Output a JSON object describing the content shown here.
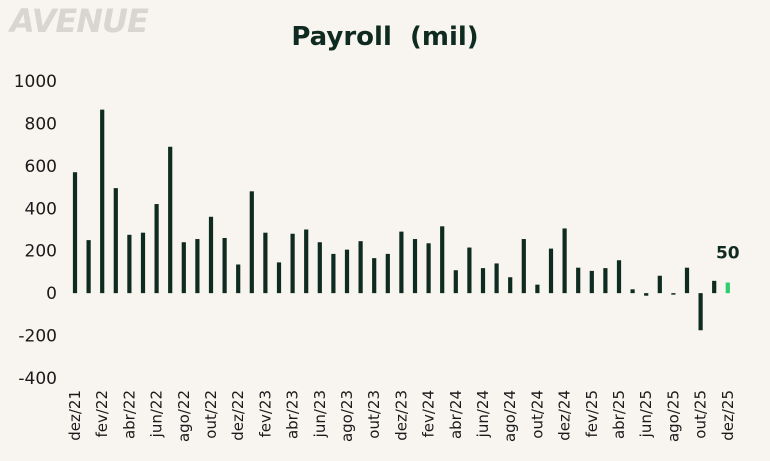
{
  "logo": {
    "text": "AVENUE"
  },
  "chart_data": {
    "type": "bar",
    "title": "Payroll  (mil)",
    "xlabel": "",
    "ylabel": "",
    "ylim": [
      -400,
      1000
    ],
    "yticks": [
      1000,
      800,
      600,
      400,
      200,
      0,
      -200,
      -400
    ],
    "grid": false,
    "categories": [
      "dez/21",
      "jan/22",
      "fev/22",
      "mar/22",
      "abr/22",
      "mai/22",
      "jun/22",
      "jul/22",
      "ago/22",
      "set/22",
      "out/22",
      "nov/22",
      "dez/22",
      "jan/23",
      "fev/23",
      "mar/23",
      "abr/23",
      "mai/23",
      "jun/23",
      "jul/23",
      "ago/23",
      "set/23",
      "out/23",
      "nov/23",
      "dez/23",
      "jan/24",
      "fev/24",
      "mar/24",
      "abr/24",
      "mai/24",
      "jun/24",
      "jul/24",
      "ago/24",
      "set/24",
      "out/24",
      "nov/24",
      "dez/24",
      "jan/25",
      "fev/25",
      "mar/25",
      "abr/25",
      "mai/25",
      "jun/25",
      "jul/25",
      "ago/25",
      "set/25",
      "out/25",
      "nov/25",
      "dez/25"
    ],
    "values": [
      570,
      250,
      865,
      495,
      275,
      285,
      420,
      690,
      240,
      255,
      360,
      260,
      135,
      480,
      285,
      145,
      280,
      300,
      240,
      185,
      205,
      245,
      165,
      185,
      290,
      255,
      235,
      315,
      108,
      215,
      118,
      140,
      75,
      255,
      40,
      210,
      305,
      120,
      105,
      118,
      155,
      18,
      -12,
      82,
      0,
      120,
      -175,
      58,
      50
    ],
    "x_tick_labels": [
      "dez/21",
      "fev/22",
      "abr/22",
      "jun/22",
      "ago/22",
      "out/22",
      "dez/22",
      "fev/23",
      "abr/23",
      "jun/23",
      "ago/23",
      "out/23",
      "dez/23",
      "fev/24",
      "abr/24",
      "jun/24",
      "ago/24",
      "out/24",
      "dez/24",
      "fev/25",
      "abr/25",
      "jun/25",
      "ago/25",
      "out/25",
      "dez/25"
    ],
    "bar_color": "#0f2a20",
    "highlight_color": "#2ecc71",
    "highlight_index": 48,
    "annotation": {
      "text": "50",
      "index": 48
    }
  }
}
